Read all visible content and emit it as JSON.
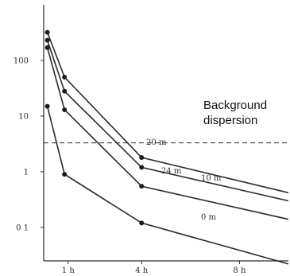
{
  "chart_data": {
    "type": "line",
    "y_scale": "log",
    "xlim": [
      0,
      10
    ],
    "ylim": [
      0.025,
      1000
    ],
    "x_ticks": [
      {
        "value": 1,
        "label": "1 h"
      },
      {
        "value": 4,
        "label": "4 h"
      },
      {
        "value": 8,
        "label": "8 h"
      }
    ],
    "y_ticks": [
      {
        "value": 100,
        "label": "100"
      },
      {
        "value": 10,
        "label": "10"
      },
      {
        "value": 1,
        "label": "1"
      },
      {
        "value": 0.1,
        "label": "0 1"
      }
    ],
    "background": {
      "value": 3.3,
      "label_line1": "Background",
      "label_line2": "dispersion"
    },
    "series": [
      {
        "name": "20 m",
        "points": [
          [
            0.15,
            320
          ],
          [
            0.85,
            50
          ],
          [
            4.0,
            1.8
          ],
          [
            10.0,
            0.42
          ]
        ]
      },
      {
        "name": "24 m",
        "points": [
          [
            0.15,
            230
          ],
          [
            0.85,
            28
          ],
          [
            4.0,
            1.2
          ],
          [
            10.0,
            0.3
          ]
        ]
      },
      {
        "name": "10 m",
        "points": [
          [
            0.15,
            170
          ],
          [
            0.85,
            13
          ],
          [
            4.0,
            0.55
          ],
          [
            10.0,
            0.14
          ]
        ]
      },
      {
        "name": "0 m",
        "points": [
          [
            0.15,
            15
          ],
          [
            0.85,
            0.9
          ],
          [
            4.0,
            0.12
          ],
          [
            10.0,
            0.022
          ]
        ]
      }
    ],
    "grid": false,
    "legend": "none"
  }
}
